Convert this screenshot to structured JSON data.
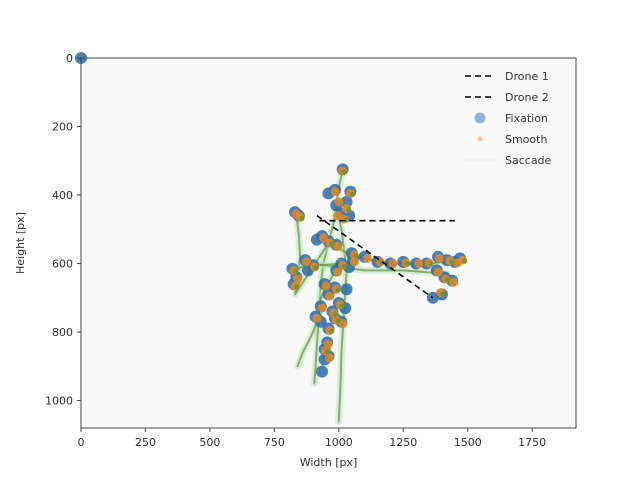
{
  "chart_data": {
    "type": "scatter",
    "title": "",
    "xlabel": "Width [px]",
    "ylabel": "Height [px]",
    "xlim": [
      0,
      1920
    ],
    "ylim": [
      1080,
      0
    ],
    "y_inverted": true,
    "x_ticks": [
      0,
      250,
      500,
      750,
      1000,
      1250,
      1500,
      1750
    ],
    "x_tick_labels": [
      "0",
      "250",
      "500",
      "750",
      "1000",
      "1250",
      "1500",
      "1750"
    ],
    "y_ticks": [
      0,
      200,
      400,
      600,
      800,
      1000
    ],
    "y_tick_labels": [
      "0",
      "200",
      "400",
      "600",
      "800",
      "1000"
    ],
    "grid": false,
    "legend_position": "top-right",
    "legend": [
      {
        "label": "Drone 1",
        "style": "dashed-line",
        "color": "#000000"
      },
      {
        "label": "Drone 2",
        "style": "dashed-line",
        "color": "#000000"
      },
      {
        "label": "Fixation",
        "style": "circle",
        "color": "#8fb4d8"
      },
      {
        "label": "Smooth",
        "style": "small-dot",
        "color": "#f5c9a0"
      },
      {
        "label": "Saccade",
        "style": "line",
        "color": "#c8e6c8"
      }
    ],
    "colors": {
      "fixation": "#4a7fb5",
      "fixation_fill": "#2d6aa8",
      "smooth": "#e6891f",
      "saccade": "#5a9a2e",
      "saccade_light": "#b7dcb7",
      "drone": "#000000"
    },
    "series": [
      {
        "name": "Drone 1",
        "kind": "line",
        "points": [
          [
            925,
            475
          ],
          [
            1450,
            475
          ]
        ]
      },
      {
        "name": "Drone 2",
        "kind": "line",
        "points": [
          [
            915,
            460
          ],
          [
            1365,
            700
          ]
        ]
      },
      {
        "name": "Fixation",
        "kind": "scatter",
        "points": [
          [
            0,
            0
          ],
          [
            1015,
            325
          ],
          [
            985,
            385
          ],
          [
            1045,
            390
          ],
          [
            960,
            395
          ],
          [
            1030,
            420
          ],
          [
            990,
            430
          ],
          [
            830,
            450
          ],
          [
            845,
            460
          ],
          [
            1010,
            455
          ],
          [
            1040,
            460
          ],
          [
            935,
            520
          ],
          [
            960,
            535
          ],
          [
            990,
            545
          ],
          [
            915,
            530
          ],
          [
            1050,
            570
          ],
          [
            1100,
            580
          ],
          [
            1150,
            595
          ],
          [
            1200,
            600
          ],
          [
            1250,
            595
          ],
          [
            1300,
            600
          ],
          [
            1340,
            600
          ],
          [
            1385,
            580
          ],
          [
            1420,
            590
          ],
          [
            1450,
            595
          ],
          [
            1470,
            585
          ],
          [
            1380,
            620
          ],
          [
            1410,
            640
          ],
          [
            1440,
            650
          ],
          [
            1400,
            690
          ],
          [
            1365,
            700
          ],
          [
            1055,
            590
          ],
          [
            1010,
            600
          ],
          [
            990,
            620
          ],
          [
            1040,
            610
          ],
          [
            820,
            615
          ],
          [
            835,
            640
          ],
          [
            825,
            660
          ],
          [
            870,
            590
          ],
          [
            900,
            605
          ],
          [
            880,
            620
          ],
          [
            945,
            660
          ],
          [
            985,
            670
          ],
          [
            960,
            690
          ],
          [
            1030,
            675
          ],
          [
            1000,
            715
          ],
          [
            1025,
            730
          ],
          [
            930,
            725
          ],
          [
            975,
            740
          ],
          [
            910,
            755
          ],
          [
            930,
            770
          ],
          [
            985,
            760
          ],
          [
            1010,
            770
          ],
          [
            960,
            790
          ],
          [
            955,
            830
          ],
          [
            945,
            850
          ],
          [
            960,
            870
          ],
          [
            945,
            880
          ],
          [
            935,
            915
          ]
        ]
      },
      {
        "name": "Smooth",
        "kind": "scatter",
        "points": [
          [
            1015,
            330
          ],
          [
            985,
            390
          ],
          [
            1045,
            395
          ],
          [
            1000,
            420
          ],
          [
            1030,
            440
          ],
          [
            995,
            460
          ],
          [
            1020,
            470
          ],
          [
            835,
            455
          ],
          [
            850,
            465
          ],
          [
            940,
            525
          ],
          [
            965,
            540
          ],
          [
            995,
            550
          ],
          [
            1060,
            575
          ],
          [
            1110,
            585
          ],
          [
            1160,
            595
          ],
          [
            1210,
            600
          ],
          [
            1260,
            598
          ],
          [
            1310,
            600
          ],
          [
            1350,
            598
          ],
          [
            1390,
            585
          ],
          [
            1430,
            592
          ],
          [
            1460,
            598
          ],
          [
            1480,
            590
          ],
          [
            1385,
            625
          ],
          [
            1415,
            645
          ],
          [
            1445,
            655
          ],
          [
            1395,
            685
          ],
          [
            1060,
            595
          ],
          [
            1015,
            605
          ],
          [
            995,
            625
          ],
          [
            825,
            620
          ],
          [
            840,
            645
          ],
          [
            830,
            665
          ],
          [
            875,
            595
          ],
          [
            905,
            610
          ],
          [
            950,
            665
          ],
          [
            990,
            675
          ],
          [
            965,
            695
          ],
          [
            1005,
            720
          ],
          [
            935,
            730
          ],
          [
            980,
            745
          ],
          [
            915,
            760
          ],
          [
            990,
            765
          ],
          [
            1015,
            775
          ],
          [
            965,
            795
          ],
          [
            958,
            835
          ],
          [
            948,
            855
          ],
          [
            962,
            875
          ]
        ]
      },
      {
        "name": "Saccade",
        "kind": "path",
        "points": [
          [
            1015,
            325
          ],
          [
            1000,
            380
          ],
          [
            990,
            430
          ],
          [
            980,
            480
          ],
          [
            960,
            540
          ],
          [
            940,
            600
          ],
          [
            930,
            660
          ],
          [
            925,
            720
          ],
          [
            920,
            780
          ],
          [
            915,
            840
          ],
          [
            910,
            900
          ],
          [
            905,
            950
          ],
          [
            990,
            430
          ],
          [
            1010,
            500
          ],
          [
            1020,
            560
          ],
          [
            1030,
            620
          ],
          [
            1025,
            680
          ],
          [
            1020,
            740
          ],
          [
            1015,
            800
          ],
          [
            1010,
            860
          ],
          [
            1008,
            920
          ],
          [
            1005,
            980
          ],
          [
            1000,
            1060
          ],
          [
            835,
            455
          ],
          [
            845,
            520
          ],
          [
            850,
            580
          ],
          [
            840,
            640
          ],
          [
            830,
            690
          ],
          [
            960,
            540
          ],
          [
            1060,
            580
          ],
          [
            1200,
            600
          ],
          [
            1350,
            600
          ],
          [
            1470,
            590
          ],
          [
            900,
            600
          ],
          [
            1000,
            610
          ],
          [
            1100,
            620
          ],
          [
            1250,
            620
          ],
          [
            1420,
            630
          ],
          [
            830,
            620
          ],
          [
            880,
            600
          ],
          [
            940,
            605
          ],
          [
            1000,
            600
          ],
          [
            930,
            700
          ],
          [
            920,
            760
          ],
          [
            900,
            800
          ],
          [
            880,
            830
          ],
          [
            860,
            860
          ],
          [
            840,
            900
          ]
        ]
      }
    ]
  }
}
